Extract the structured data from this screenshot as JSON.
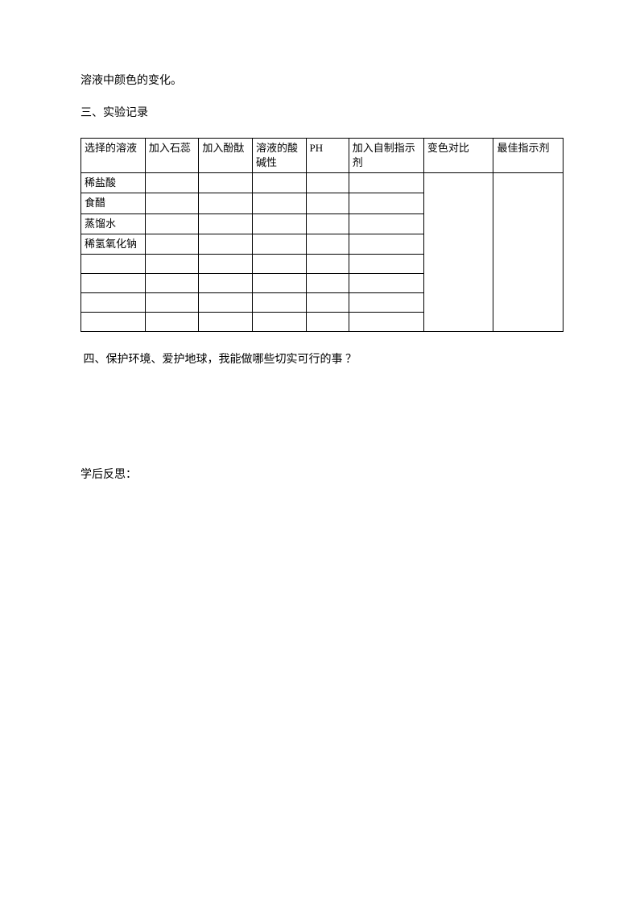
{
  "intro_text": "溶液中颜色的变化。",
  "section3_title": "三、实验记录",
  "table": {
    "headers": {
      "col1": "选择的溶液",
      "col2": "加入石蕊",
      "col3": "加入酚酞",
      "col4": "溶液的酸碱性",
      "col5": "PH",
      "col6": "加入自制指示剂",
      "col7": "变色对比",
      "col8": "最佳指示剂"
    },
    "rows": {
      "r1": "稀盐酸",
      "r2": "食醋",
      "r3": "蒸馏水",
      "r4": "稀氢氧化钠"
    }
  },
  "section4_text": " 四、保护环境、爱护地球，我能做哪些切实可行的事 ？",
  "reflection_label": "学后反思："
}
